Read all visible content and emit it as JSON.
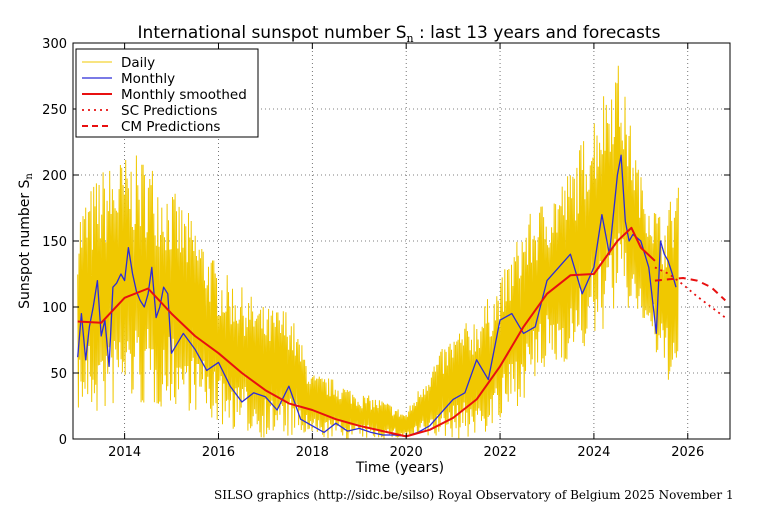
{
  "colors": {
    "daily": "#f0c800",
    "monthly": "#2b2bd8",
    "smoothed": "#e81010",
    "sc": "#e81010",
    "cm": "#e81010"
  },
  "footer": {
    "text": "SILSO graphics (http://sidc.be/silso)  Royal Observatory of Belgium  2025 November 1"
  },
  "chart_data": {
    "type": "line",
    "title": "International sunspot number S",
    "title_subscript": "n",
    "title_suffix": " : last 13 years and forecasts",
    "xlabel": "Time (years)",
    "ylabel": "Sunspot number S",
    "ylabel_subscript": "n",
    "xlim": [
      2012.9,
      2026.9
    ],
    "ylim": [
      0,
      300
    ],
    "xticks": [
      2014,
      2016,
      2018,
      2020,
      2022,
      2024,
      2026
    ],
    "yticks": [
      0,
      50,
      100,
      150,
      200,
      250,
      300
    ],
    "grid": true,
    "legend_position": "top-left",
    "legend": [
      {
        "name": "Daily",
        "style": "solid-thin",
        "color": "#f0c800"
      },
      {
        "name": "Monthly",
        "style": "solid",
        "color": "#2b2bd8"
      },
      {
        "name": "Monthly smoothed",
        "style": "solid-thick",
        "color": "#e81010"
      },
      {
        "name": "SC Predictions",
        "style": "dotted",
        "color": "#e81010"
      },
      {
        "name": "CM Predictions",
        "style": "dashed",
        "color": "#e81010"
      }
    ],
    "daily_envelope": {
      "x": [
        2013.0,
        2013.5,
        2014.0,
        2014.5,
        2015.0,
        2015.5,
        2016.0,
        2016.5,
        2017.0,
        2017.5,
        2018.0,
        2018.5,
        2019.0,
        2019.5,
        2020.0,
        2020.5,
        2021.0,
        2021.5,
        2022.0,
        2022.5,
        2023.0,
        2023.5,
        2024.0,
        2024.5,
        2025.0,
        2025.5,
        2025.8
      ],
      "high": [
        175,
        205,
        215,
        215,
        190,
        165,
        130,
        115,
        100,
        100,
        50,
        45,
        35,
        30,
        20,
        55,
        80,
        95,
        120,
        165,
        185,
        205,
        250,
        290,
        200,
        165,
        205
      ],
      "low": [
        20,
        15,
        30,
        20,
        25,
        20,
        10,
        5,
        0,
        0,
        0,
        0,
        0,
        0,
        0,
        0,
        0,
        0,
        10,
        30,
        50,
        60,
        70,
        100,
        90,
        45,
        40
      ]
    },
    "series": [
      {
        "name": "Monthly",
        "x": [
          2013.0,
          2013.08,
          2013.17,
          2013.25,
          2013.33,
          2013.42,
          2013.5,
          2013.58,
          2013.67,
          2013.75,
          2013.83,
          2013.92,
          2014.0,
          2014.08,
          2014.17,
          2014.25,
          2014.33,
          2014.42,
          2014.5,
          2014.58,
          2014.67,
          2014.75,
          2014.83,
          2014.92,
          2015.0,
          2015.25,
          2015.5,
          2015.75,
          2016.0,
          2016.25,
          2016.5,
          2016.75,
          2017.0,
          2017.25,
          2017.5,
          2017.75,
          2018.0,
          2018.25,
          2018.5,
          2018.75,
          2019.0,
          2019.25,
          2019.5,
          2019.75,
          2020.0,
          2020.25,
          2020.5,
          2020.75,
          2021.0,
          2021.25,
          2021.5,
          2021.75,
          2022.0,
          2022.25,
          2022.5,
          2022.75,
          2023.0,
          2023.25,
          2023.5,
          2023.75,
          2024.0,
          2024.17,
          2024.33,
          2024.5,
          2024.58,
          2024.67,
          2024.75,
          2024.83,
          2025.0,
          2025.17,
          2025.33,
          2025.42,
          2025.5,
          2025.58,
          2025.67,
          2025.75
        ],
        "values": [
          62,
          95,
          60,
          85,
          100,
          120,
          78,
          90,
          55,
          115,
          118,
          125,
          120,
          145,
          125,
          112,
          105,
          100,
          110,
          130,
          92,
          100,
          115,
          110,
          65,
          80,
          68,
          52,
          58,
          40,
          28,
          35,
          32,
          22,
          40,
          15,
          10,
          5,
          12,
          6,
          8,
          5,
          3,
          3,
          2,
          5,
          10,
          20,
          30,
          35,
          60,
          45,
          90,
          95,
          80,
          85,
          120,
          130,
          140,
          110,
          130,
          170,
          140,
          200,
          215,
          165,
          150,
          155,
          150,
          130,
          80,
          150,
          140,
          135,
          125,
          115
        ]
      },
      {
        "name": "Monthly smoothed",
        "x": [
          2013.0,
          2013.5,
          2014.0,
          2014.5,
          2015.0,
          2015.5,
          2016.0,
          2016.5,
          2017.0,
          2017.5,
          2018.0,
          2018.5,
          2019.0,
          2019.5,
          2020.0,
          2020.5,
          2021.0,
          2021.5,
          2022.0,
          2022.5,
          2023.0,
          2023.5,
          2024.0,
          2024.5,
          2024.8,
          2025.0,
          2025.3
        ],
        "values": [
          89,
          88,
          107,
          114,
          95,
          78,
          65,
          50,
          37,
          27,
          22,
          15,
          10,
          6,
          2,
          7,
          16,
          30,
          55,
          85,
          110,
          124,
          125,
          150,
          160,
          145,
          135
        ]
      },
      {
        "name": "SC Predictions",
        "x": [
          2025.3,
          2025.6,
          2025.9,
          2026.2,
          2026.5,
          2026.8
        ],
        "values": [
          130,
          125,
          117,
          108,
          100,
          92
        ]
      },
      {
        "name": "CM Predictions",
        "x": [
          2025.3,
          2025.6,
          2025.9,
          2026.2,
          2026.5,
          2026.8
        ],
        "values": [
          120,
          121,
          122,
          120,
          115,
          105
        ]
      }
    ]
  }
}
